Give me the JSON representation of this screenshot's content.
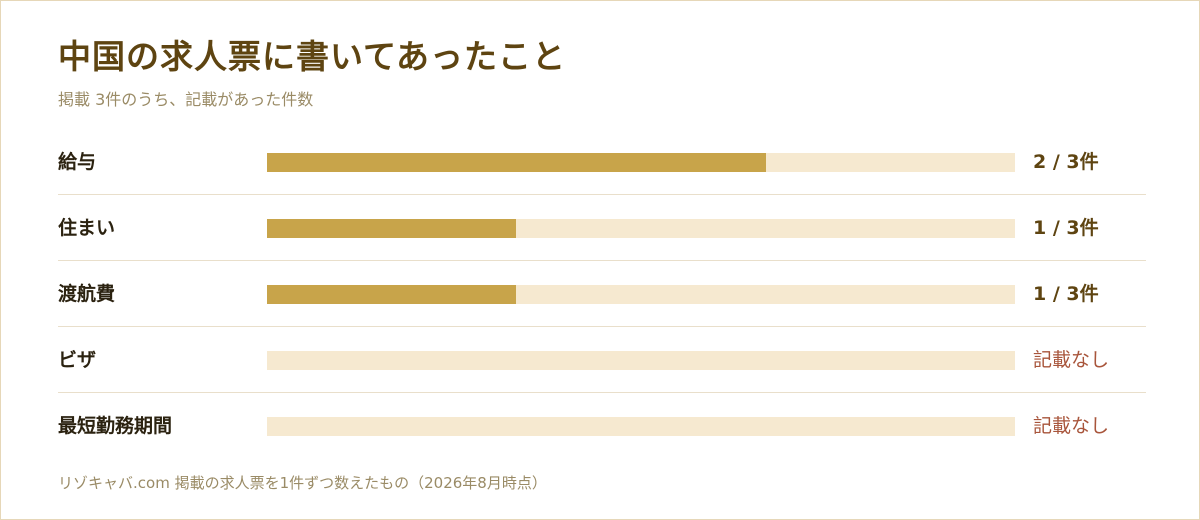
{
  "colors": {
    "bar_fill": "#c8a44a",
    "bar_track": "#f6e9d0",
    "title": "#5e4411",
    "missing_text": "#a8553b"
  },
  "chart_data": {
    "type": "bar",
    "orientation": "horizontal",
    "title": "中国の求人票に書いてあったこと",
    "subtitle": "掲載 3件のうち、記載があった件数",
    "xlim": [
      0,
      3
    ],
    "grid": false,
    "categories": [
      "給与",
      "住まい",
      "渡航費",
      "ビザ",
      "最短勤務期間"
    ],
    "values": [
      2,
      1,
      1,
      0,
      0
    ],
    "value_labels": [
      "2 / 3件",
      "1 / 3件",
      "1 / 3件",
      "記載なし",
      "記載なし"
    ],
    "source": "リゾキャバ.com 掲載の求人票を1件ずつ数えたもの（2026年8月時点）"
  }
}
